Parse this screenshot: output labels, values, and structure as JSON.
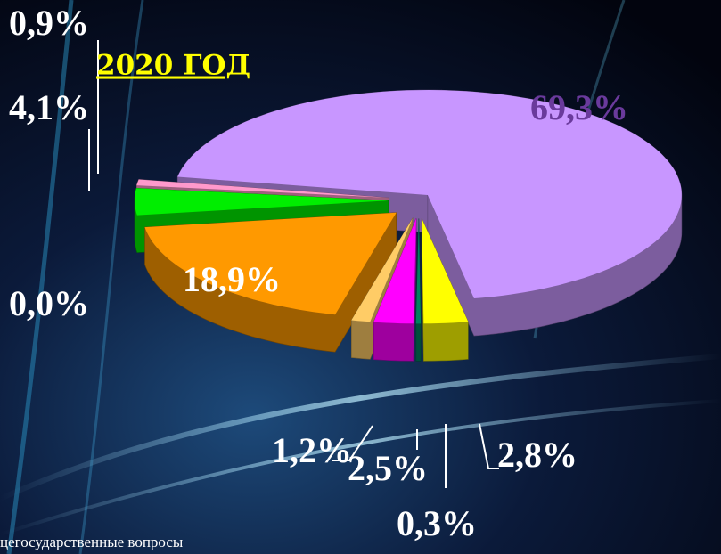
{
  "chart_data": {
    "type": "pie3d",
    "title": "2020 ГОД",
    "categories": [
      "",
      "",
      "",
      "",
      "",
      "",
      "",
      "",
      ""
    ],
    "values": [
      69.3,
      2.8,
      0.3,
      2.5,
      1.2,
      18.9,
      0.0,
      4.1,
      0.9
    ],
    "value_labels": [
      "69,3%",
      "2,8%",
      "0,3%",
      "2,5%",
      "1,2%",
      "18,9%",
      "0,0%",
      "4,1%",
      "0,9%"
    ],
    "colors": [
      "#c896ff",
      "#ffff00",
      "#008060",
      "#ff00ff",
      "#ffcc66",
      "#ff9900",
      "#8ca0b4",
      "#00ee00",
      "#ff99cc"
    ],
    "footnote": "цегосударственные вопросы"
  }
}
